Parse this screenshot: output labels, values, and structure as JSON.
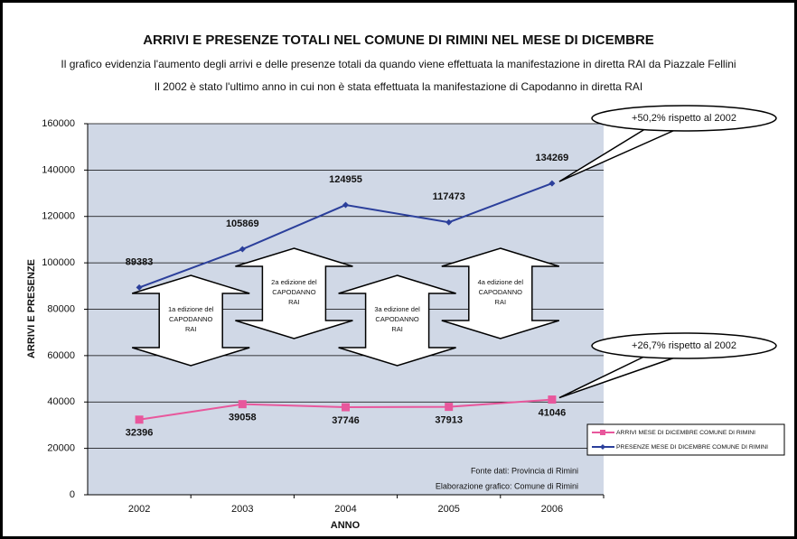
{
  "chart_data": {
    "type": "line",
    "title": "ARRIVI E PRESENZE TOTALI NEL COMUNE DI RIMINI NEL MESE DI DICEMBRE",
    "subtitle": [
      "Il grafico evidenzia l'aumento degli arrivi e delle presenze totali da quando viene effettuata la manifestazione in diretta RAI da Piazzale Fellini",
      "Il 2002 è stato l'ultimo anno in cui non è stata effettuata la manifestazione di Capodanno in diretta RAI"
    ],
    "x_label": "ANNO",
    "y_label": "ARRIVI E PRESENZE",
    "categories": [
      "2002",
      "2003",
      "2004",
      "2005",
      "2006"
    ],
    "series": [
      {
        "name": "ARRIVI MESE DI DICEMBRE COMUNE DI RIMINI",
        "color": "#e8579c",
        "marker": "square",
        "values": [
          32396,
          39058,
          37746,
          37913,
          41046
        ]
      },
      {
        "name": "PRESENZE MESE DI DICEMBRE COMUNE DI RIMINI",
        "color": "#2b3f9b",
        "marker": "diamond",
        "values": [
          89383,
          105869,
          124955,
          117473,
          134269
        ]
      }
    ],
    "ylim": [
      0,
      160000
    ],
    "yticks": [
      0,
      20000,
      40000,
      60000,
      80000,
      100000,
      120000,
      140000,
      160000
    ],
    "grid": true,
    "legend": "right",
    "annotations": [
      {
        "text": "+50,2% rispetto al 2002"
      },
      {
        "text": "+26,7% rispetto al 2002"
      }
    ],
    "editions": [
      {
        "lines": [
          "1a edizione del",
          "CAPODANNO",
          "RAI"
        ]
      },
      {
        "lines": [
          "2a edizione del",
          "CAPODANNO",
          "RAI"
        ]
      },
      {
        "lines": [
          "3a edizione del",
          "CAPODANNO",
          "RAI"
        ]
      },
      {
        "lines": [
          "4a edizione del",
          "CAPODANNO",
          "RAI"
        ]
      }
    ],
    "source": [
      "Fonte dati: Provincia di Rimini",
      "Elaborazione grafico: Comune di Rimini"
    ]
  }
}
